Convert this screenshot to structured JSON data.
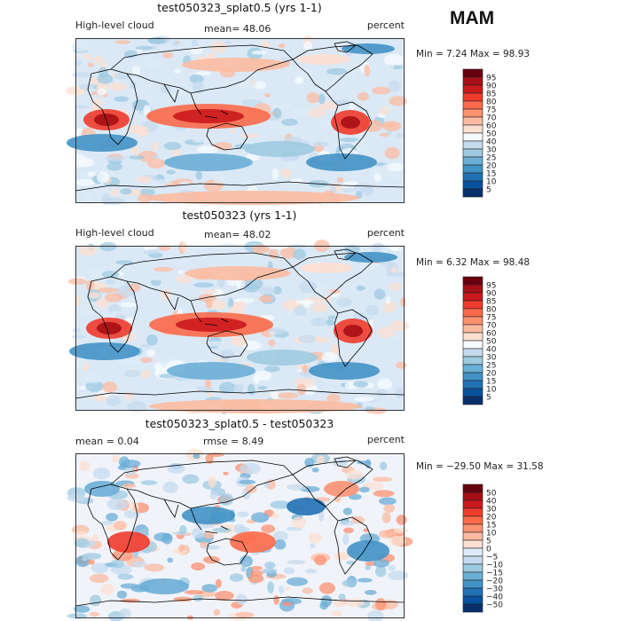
{
  "season": "MAM",
  "colors": {
    "ocean_blue_low": "#08306b",
    "contour_line": "#000000",
    "frame": "#333333"
  },
  "chart_data": [
    {
      "type": "heatmap",
      "title": "test050323_splat0.5 (yrs 1-1)",
      "left_label": "High-level cloud",
      "center_label": "mean=  48.06",
      "right_label": "percent",
      "min_text": "Min =    7.24 Max =   98.93",
      "min": 7.24,
      "max": 98.93,
      "mean": 48.06,
      "units": "percent",
      "colorbar": {
        "labels": [
          "95",
          "90",
          "85",
          "80",
          "75",
          "70",
          "60",
          "50",
          "40",
          "30",
          "25",
          "20",
          "15",
          "10",
          "5"
        ],
        "colors": [
          "#67000d",
          "#a50f15",
          "#cb181d",
          "#ef3b2c",
          "#fb6a4a",
          "#fc9272",
          "#fcbba1",
          "#fee0d2",
          "#f7fbff",
          "#c6dbef",
          "#9ecae1",
          "#6baed6",
          "#4292c6",
          "#2171b5",
          "#08519c",
          "#08306b"
        ]
      }
    },
    {
      "type": "heatmap",
      "title": "test050323 (yrs 1-1)",
      "left_label": "High-level cloud",
      "center_label": "mean=  48.02",
      "right_label": "percent",
      "min_text": "Min =    6.32 Max =   98.48",
      "min": 6.32,
      "max": 98.48,
      "mean": 48.02,
      "units": "percent",
      "colorbar": {
        "labels": [
          "95",
          "90",
          "85",
          "80",
          "75",
          "70",
          "60",
          "50",
          "40",
          "30",
          "25",
          "20",
          "15",
          "10",
          "5"
        ],
        "colors": [
          "#67000d",
          "#a50f15",
          "#cb181d",
          "#ef3b2c",
          "#fb6a4a",
          "#fc9272",
          "#fcbba1",
          "#fee0d2",
          "#f7fbff",
          "#c6dbef",
          "#9ecae1",
          "#6baed6",
          "#4292c6",
          "#2171b5",
          "#08519c",
          "#08306b"
        ]
      }
    },
    {
      "type": "heatmap",
      "title": "test050323_splat0.5 - test050323",
      "left_label": "mean =     0.04",
      "center_label": "rmse =     8.49",
      "right_label": "percent",
      "min_text": "Min = −29.50 Max =   31.58",
      "min": -29.5,
      "max": 31.58,
      "mean": 0.04,
      "rmse": 8.49,
      "units": "percent",
      "colorbar": {
        "labels": [
          "50",
          "40",
          "30",
          "20",
          "15",
          "10",
          "5",
          "0",
          "−5",
          "−10",
          "−15",
          "−20",
          "−30",
          "−40",
          "−50"
        ],
        "colors": [
          "#67000d",
          "#a50f15",
          "#cb181d",
          "#ef3b2c",
          "#fb6a4a",
          "#fc9272",
          "#fcbba1",
          "#fee0d2",
          "#deebf7",
          "#c6dbef",
          "#9ecae1",
          "#6baed6",
          "#4292c6",
          "#2171b5",
          "#08519c",
          "#08306b"
        ]
      }
    }
  ]
}
